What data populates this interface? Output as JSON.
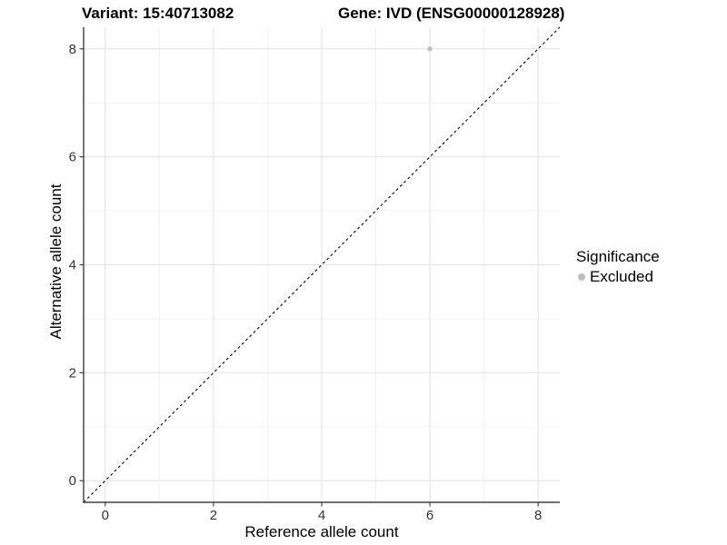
{
  "chart_data": {
    "type": "scatter",
    "titles": {
      "left": "Variant: 15:40713082",
      "right": "Gene: IVD (ENSG00000128928)"
    },
    "xlabel": "Reference allele count",
    "ylabel": "Alternative allele count",
    "xlim": [
      -0.4,
      8.4
    ],
    "ylim": [
      -0.4,
      8.4
    ],
    "x_ticks": [
      0,
      2,
      4,
      6,
      8
    ],
    "y_ticks": [
      0,
      2,
      4,
      6,
      8
    ],
    "x_minor_ticks": [
      1,
      3,
      5,
      7
    ],
    "y_minor_ticks": [
      1,
      3,
      5,
      7
    ],
    "grid": "major+minor",
    "background": "#ffffff",
    "gridline_major_color": "#e3e3e3",
    "gridline_minor_color": "#f0f0f0",
    "points": [
      {
        "x": 6,
        "y": 8,
        "series": "Excluded"
      }
    ],
    "series": [
      {
        "name": "Excluded",
        "color": "#bdbdbd"
      }
    ],
    "identity_line": {
      "from": [
        -0.4,
        -0.4
      ],
      "to": [
        8.4,
        8.4
      ],
      "style": "dashed",
      "color": "#000000"
    },
    "legend": {
      "title": "Significance",
      "position": "right",
      "items": [
        {
          "label": "Excluded",
          "color": "#bdbdbd"
        }
      ]
    }
  }
}
